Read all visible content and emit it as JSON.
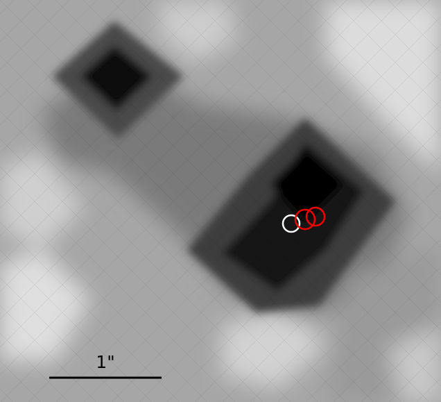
{
  "scale_bar": {
    "label": "1\""
  },
  "markers": [
    {
      "name": "white-marker",
      "color": "#ffffff"
    },
    {
      "name": "red-marker-1",
      "color": "#ee0000"
    },
    {
      "name": "red-marker-2",
      "color": "#ee0000"
    }
  ],
  "colors": {
    "scale_bar": "#000000",
    "background_low": "#000000",
    "background_high": "#ffffff"
  }
}
